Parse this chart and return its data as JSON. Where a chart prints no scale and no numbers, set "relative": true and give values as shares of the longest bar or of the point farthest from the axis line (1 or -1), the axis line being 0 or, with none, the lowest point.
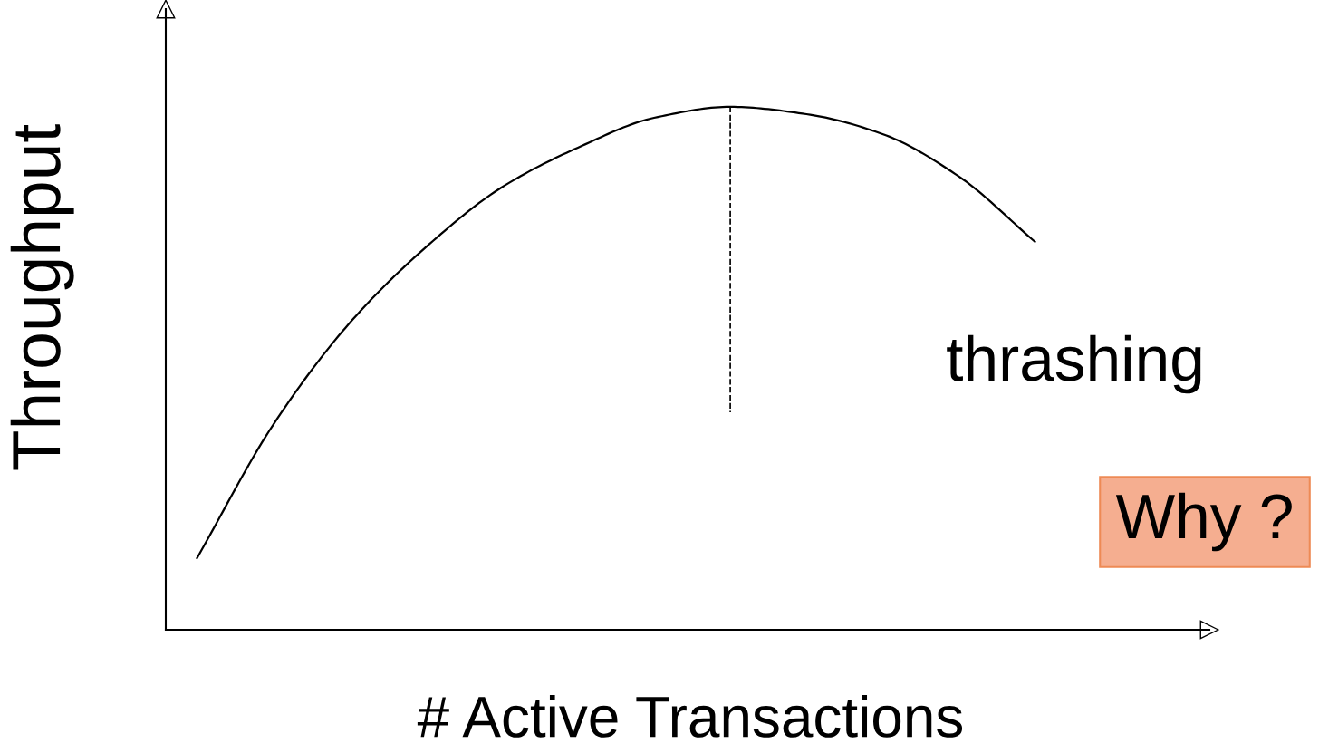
{
  "chart_data": {
    "type": "line",
    "relative": true,
    "xlabel": "# Active Transactions",
    "ylabel": "Throughput",
    "categories": [
      null,
      null,
      null,
      null,
      null,
      null,
      null,
      null,
      null,
      null,
      null,
      null
    ],
    "series": [
      {
        "color": "#000000",
        "values": [
          0.137,
          0.392,
          0.586,
          0.731,
          0.846,
          0.922,
          0.979,
          1.0,
          0.986,
          0.948,
          0.867,
          0.742
        ]
      }
    ],
    "annotations": [
      "thrashing",
      "Why ?"
    ],
    "legend": false,
    "marker": "none",
    "line_style": "solid"
  }
}
